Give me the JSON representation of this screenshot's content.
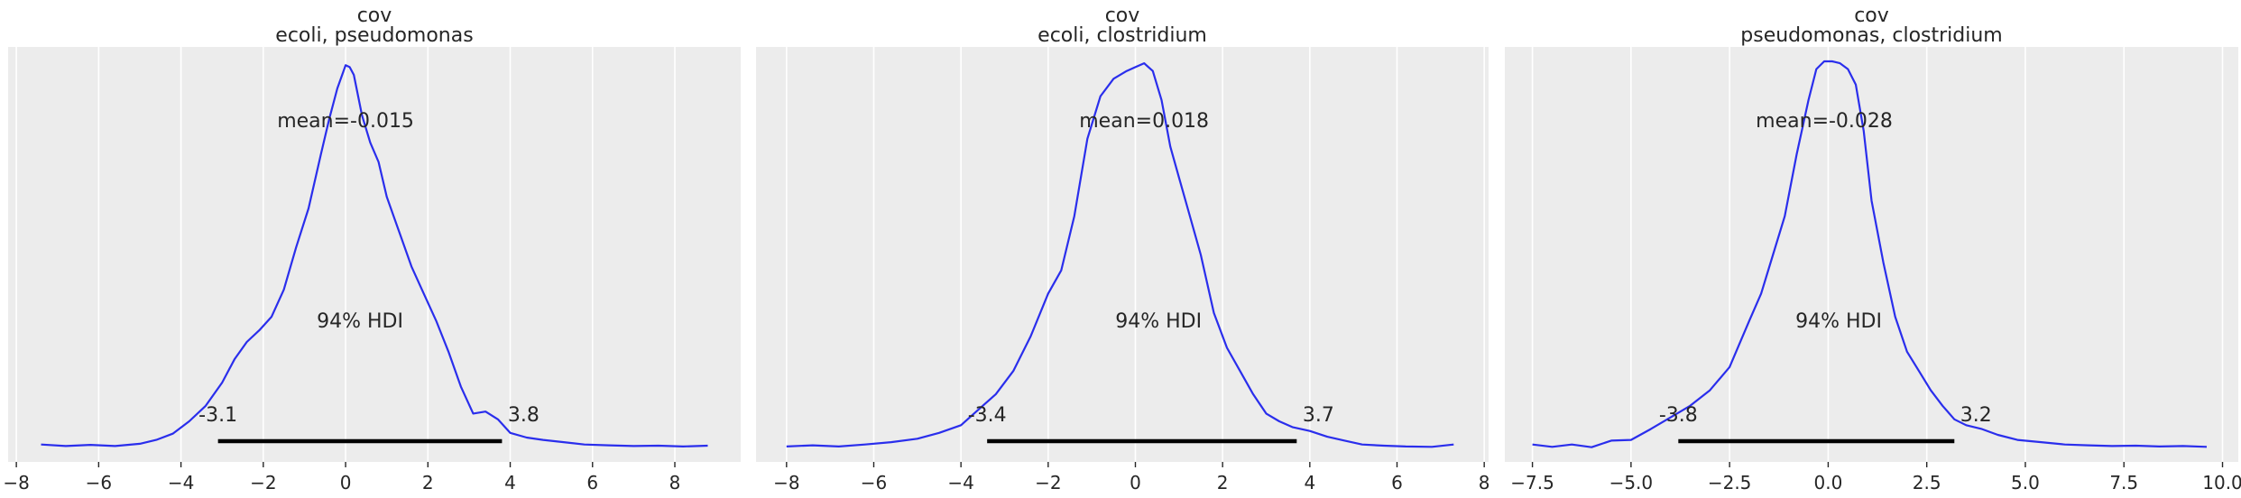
{
  "colors": {
    "panel_background": "#ececec",
    "grid": "#ffffff",
    "density_line": "#2a2eec",
    "hdi_bar": "#000000"
  },
  "chart_data": [
    {
      "type": "line",
      "title": "cov",
      "subtitle": "ecoli, pseudomonas",
      "xlabel": "",
      "ylabel": "",
      "xlim": [
        -8.2,
        9.6
      ],
      "xticks": [
        -8,
        -6,
        -4,
        -2,
        0,
        2,
        4,
        6,
        8
      ],
      "tick_labels": [
        "−8",
        "−6",
        "−4",
        "−2",
        "0",
        "2",
        "4",
        "6",
        "8"
      ],
      "grid": true,
      "yaxis_visible": false,
      "mean_label": "mean=-0.015",
      "hdi_label": "94% HDI",
      "hdi": [
        -3.1,
        3.8
      ],
      "hdi_low_label": "-3.1",
      "hdi_high_label": "3.8",
      "density": {
        "x": [
          -7.4,
          -6.8,
          -6.2,
          -5.6,
          -5.0,
          -4.6,
          -4.2,
          -3.8,
          -3.4,
          -3.0,
          -2.7,
          -2.4,
          -2.1,
          -1.8,
          -1.5,
          -1.2,
          -0.9,
          -0.6,
          -0.4,
          -0.2,
          0.0,
          0.1,
          0.2,
          0.4,
          0.6,
          0.8,
          1.0,
          1.3,
          1.6,
          1.9,
          2.2,
          2.5,
          2.8,
          3.1,
          3.4,
          3.7,
          4.0,
          4.4,
          4.8,
          5.3,
          5.8,
          6.4,
          7.0,
          7.6,
          8.2,
          8.8
        ],
        "y": [
          0.01,
          0.006,
          0.009,
          0.006,
          0.012,
          0.022,
          0.038,
          0.07,
          0.11,
          0.17,
          0.23,
          0.275,
          0.305,
          0.34,
          0.41,
          0.52,
          0.62,
          0.76,
          0.85,
          0.93,
          0.99,
          0.985,
          0.965,
          0.86,
          0.79,
          0.74,
          0.65,
          0.56,
          0.47,
          0.4,
          0.33,
          0.25,
          0.16,
          0.09,
          0.095,
          0.075,
          0.04,
          0.028,
          0.022,
          0.016,
          0.01,
          0.008,
          0.006,
          0.007,
          0.005,
          0.007
        ]
      }
    },
    {
      "type": "line",
      "title": "cov",
      "subtitle": "ecoli, clostridium",
      "xlabel": "",
      "ylabel": "",
      "xlim": [
        -8.7,
        8.1
      ],
      "xticks": [
        -8,
        -6,
        -4,
        -2,
        0,
        2,
        4,
        6,
        8
      ],
      "tick_labels": [
        "−8",
        "−6",
        "−4",
        "−2",
        "0",
        "2",
        "4",
        "6",
        "8"
      ],
      "grid": true,
      "yaxis_visible": false,
      "mean_label": "mean=0.018",
      "hdi_label": "94% HDI",
      "hdi": [
        -3.4,
        3.7
      ],
      "hdi_low_label": "-3.4",
      "hdi_high_label": "3.7",
      "density": {
        "x": [
          -8.0,
          -7.4,
          -6.8,
          -6.2,
          -5.6,
          -5.0,
          -4.5,
          -4.0,
          -3.6,
          -3.2,
          -2.8,
          -2.4,
          -2.0,
          -1.7,
          -1.4,
          -1.1,
          -0.8,
          -0.5,
          -0.2,
          0.0,
          0.2,
          0.4,
          0.6,
          0.8,
          1.0,
          1.2,
          1.5,
          1.8,
          2.1,
          2.4,
          2.7,
          3.0,
          3.3,
          3.6,
          4.0,
          4.4,
          4.8,
          5.2,
          5.7,
          6.2,
          6.8,
          7.3
        ],
        "y": [
          0.005,
          0.008,
          0.005,
          0.01,
          0.016,
          0.025,
          0.04,
          0.06,
          0.1,
          0.14,
          0.2,
          0.29,
          0.4,
          0.46,
          0.6,
          0.8,
          0.91,
          0.955,
          0.975,
          0.985,
          0.995,
          0.975,
          0.9,
          0.78,
          0.7,
          0.62,
          0.5,
          0.35,
          0.26,
          0.2,
          0.14,
          0.09,
          0.07,
          0.055,
          0.045,
          0.03,
          0.02,
          0.01,
          0.007,
          0.005,
          0.004,
          0.01
        ]
      }
    },
    {
      "type": "line",
      "title": "cov",
      "subtitle": "pseudomonas, clostridium",
      "xlabel": "",
      "ylabel": "",
      "xlim": [
        -8.2,
        10.4
      ],
      "xticks": [
        -7.5,
        -5.0,
        -2.5,
        0.0,
        2.5,
        5.0,
        7.5,
        10.0
      ],
      "tick_labels": [
        "−7.5",
        "−5.0",
        "−2.5",
        "0.0",
        "2.5",
        "5.0",
        "7.5",
        "10.0"
      ],
      "grid": true,
      "yaxis_visible": false,
      "mean_label": "mean=-0.028",
      "hdi_label": "94% HDI",
      "hdi": [
        -3.8,
        3.2
      ],
      "hdi_low_label": "-3.8",
      "hdi_high_label": "3.2",
      "density": {
        "x": [
          -7.5,
          -7.0,
          -6.5,
          -6.0,
          -5.5,
          -5.0,
          -4.5,
          -4.0,
          -3.5,
          -3.0,
          -2.5,
          -2.0,
          -1.7,
          -1.4,
          -1.1,
          -0.8,
          -0.5,
          -0.3,
          -0.1,
          0.1,
          0.3,
          0.5,
          0.7,
          0.9,
          1.1,
          1.4,
          1.7,
          2.0,
          2.3,
          2.6,
          2.9,
          3.2,
          3.5,
          3.9,
          4.3,
          4.8,
          5.4,
          6.0,
          6.6,
          7.2,
          7.8,
          8.4,
          9.0,
          9.6
        ],
        "y": [
          0.01,
          0.004,
          0.01,
          0.003,
          0.02,
          0.022,
          0.05,
          0.08,
          0.11,
          0.15,
          0.21,
          0.33,
          0.4,
          0.5,
          0.6,
          0.76,
          0.9,
          0.98,
          1.0,
          1.0,
          0.995,
          0.98,
          0.94,
          0.82,
          0.64,
          0.48,
          0.34,
          0.25,
          0.2,
          0.15,
          0.11,
          0.075,
          0.06,
          0.05,
          0.035,
          0.022,
          0.016,
          0.01,
          0.008,
          0.006,
          0.007,
          0.005,
          0.006,
          0.004
        ]
      }
    }
  ]
}
